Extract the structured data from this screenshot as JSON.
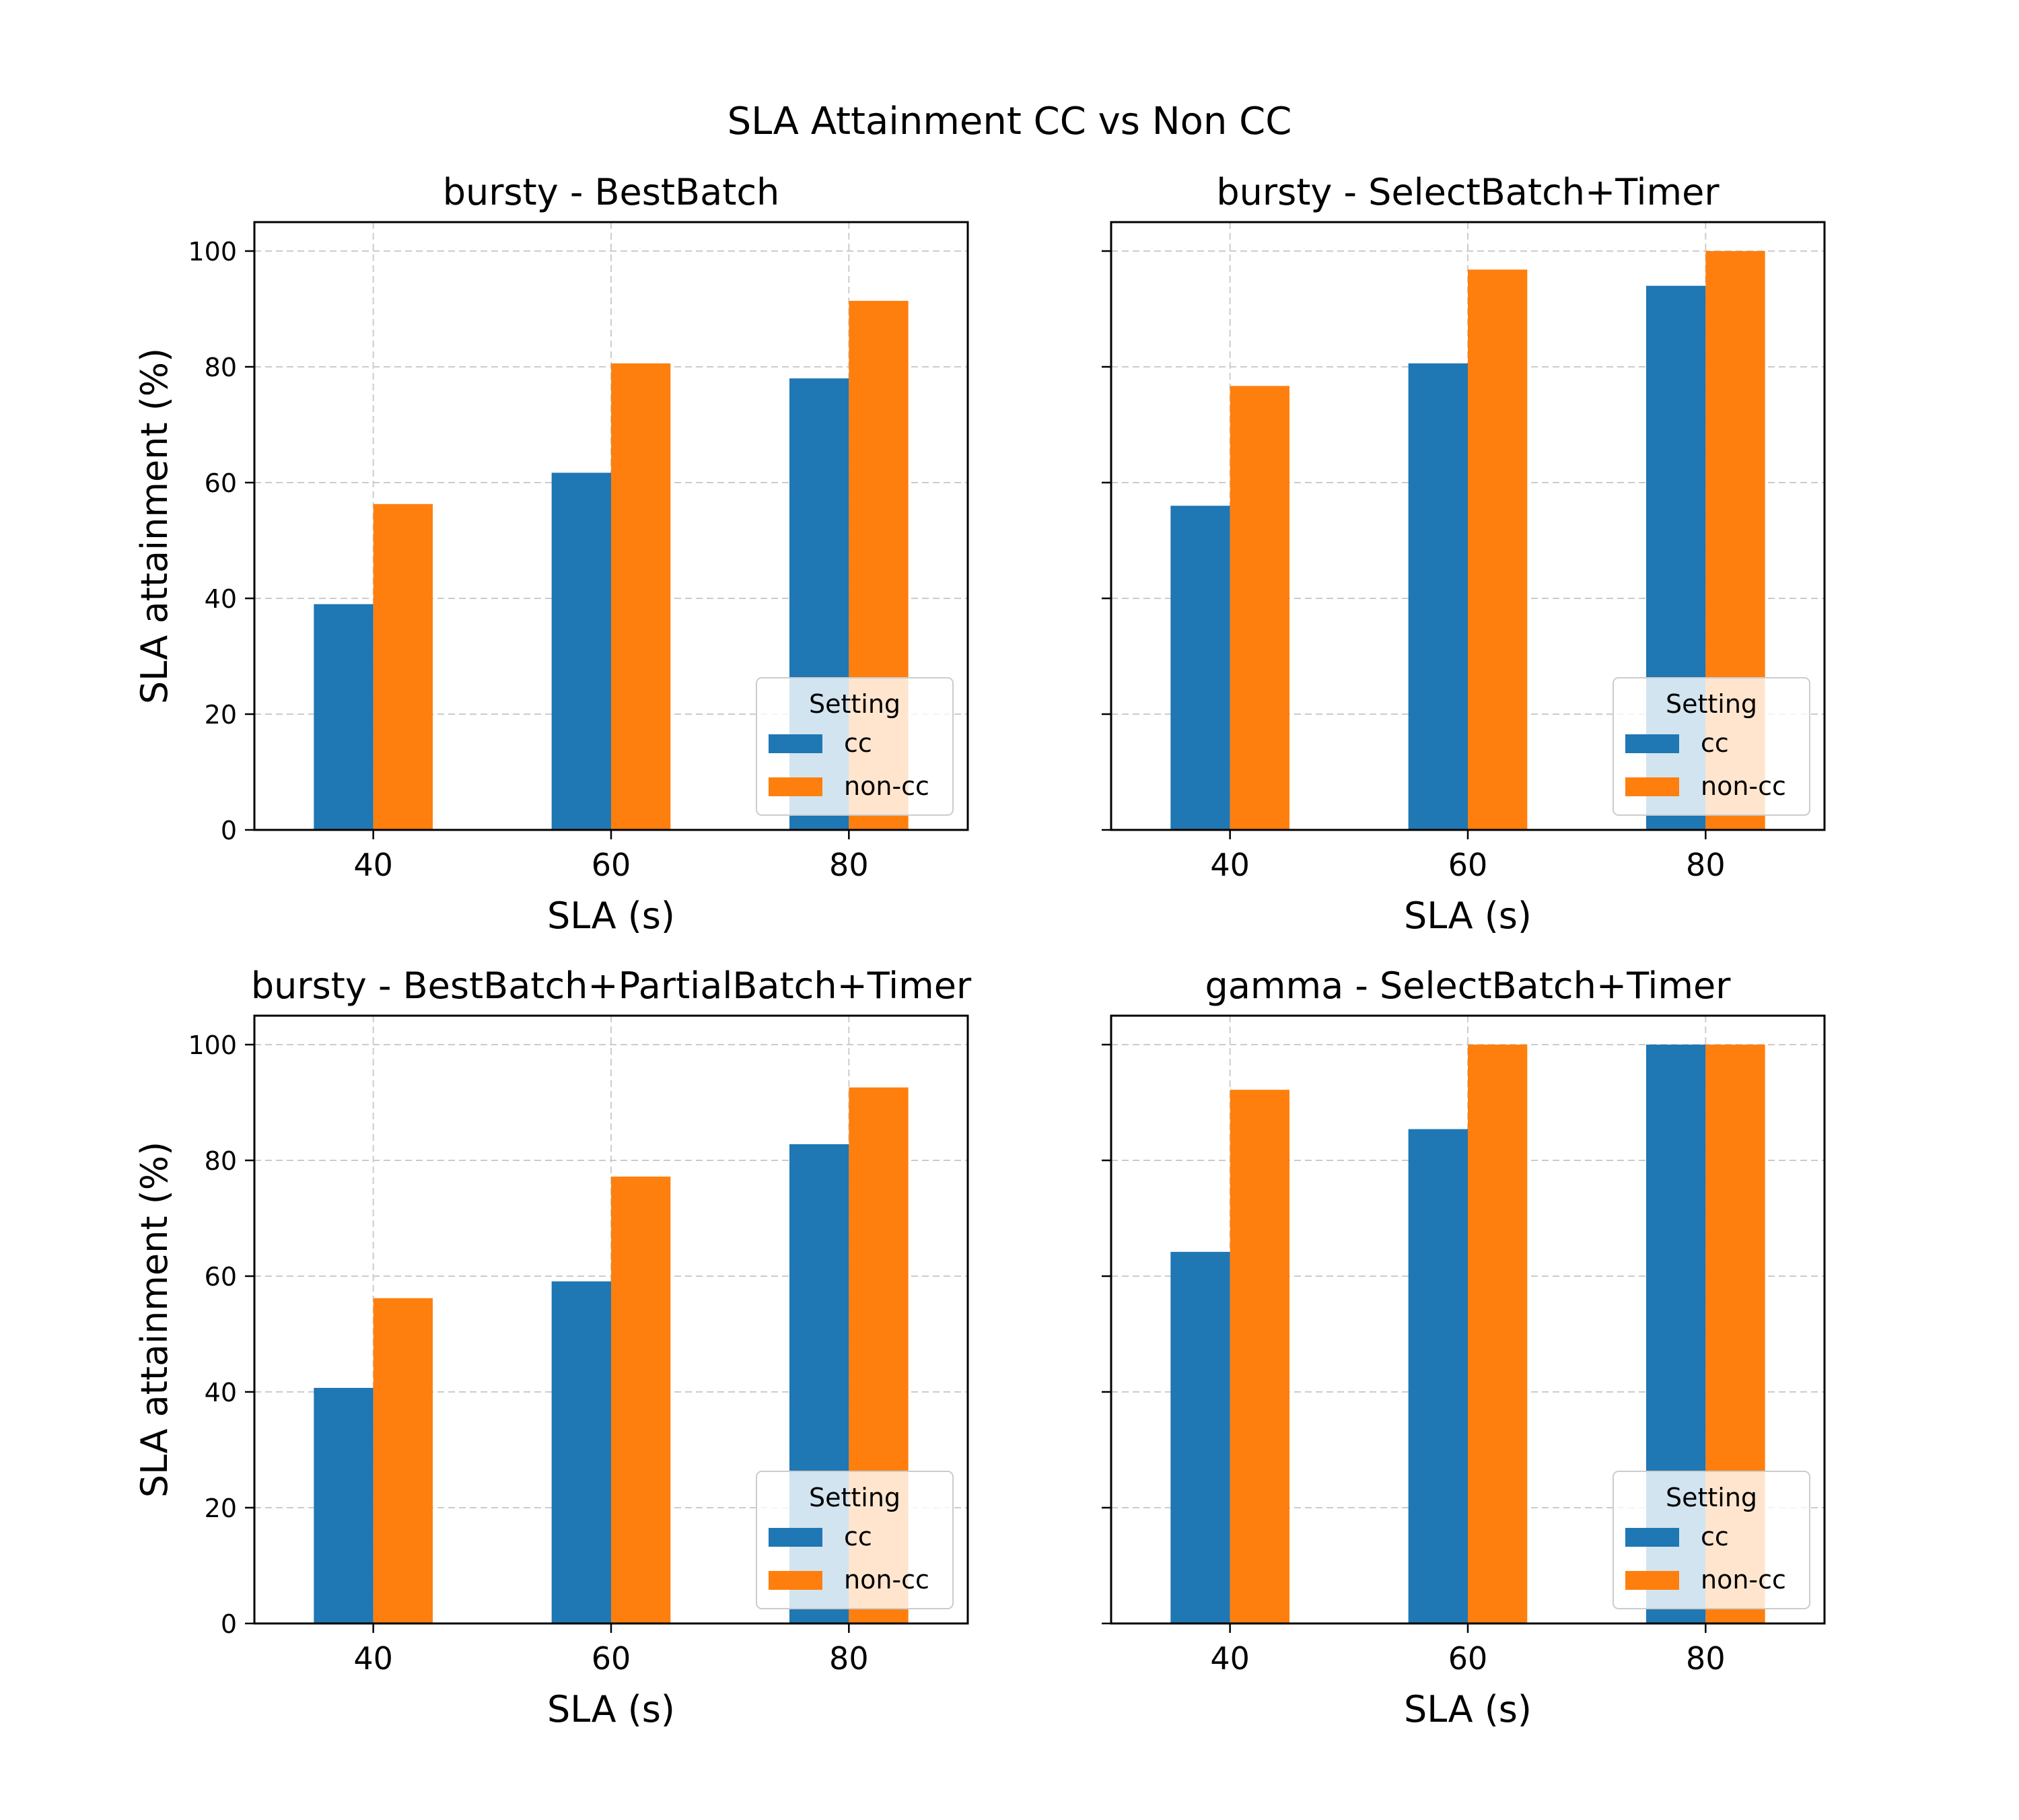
{
  "figure": {
    "title": "SLA Attainment CC vs Non CC"
  },
  "colors": {
    "cc": "#1f77b4",
    "non_cc": "#ff7f0e",
    "grid": "#cccccc"
  },
  "chart_data": [
    {
      "type": "bar",
      "title": "bursty - BestBatch",
      "xlabel": "SLA (s)",
      "ylabel": "SLA attainment (%)",
      "categories": [
        "40",
        "60",
        "80"
      ],
      "ylim": [
        0,
        105
      ],
      "yticks": [
        "0",
        "20",
        "40",
        "60",
        "80",
        "100"
      ],
      "grid": true,
      "legend": {
        "title": "Setting",
        "position": "lower right"
      },
      "series": [
        {
          "name": "cc",
          "values": [
            39,
            61.7,
            78
          ]
        },
        {
          "name": "non-cc",
          "values": [
            56.3,
            80.6,
            91.4
          ]
        }
      ]
    },
    {
      "type": "bar",
      "title": "bursty - SelectBatch+Timer",
      "xlabel": "SLA (s)",
      "ylabel": "",
      "categories": [
        "40",
        "60",
        "80"
      ],
      "ylim": [
        0,
        105
      ],
      "yticks": [],
      "grid": true,
      "legend": {
        "title": "Setting",
        "position": "lower right"
      },
      "series": [
        {
          "name": "cc",
          "values": [
            56,
            80.6,
            94
          ]
        },
        {
          "name": "non-cc",
          "values": [
            76.7,
            96.8,
            100
          ]
        }
      ]
    },
    {
      "type": "bar",
      "title": "bursty - BestBatch+PartialBatch+Timer",
      "xlabel": "SLA (s)",
      "ylabel": "SLA attainment (%)",
      "categories": [
        "40",
        "60",
        "80"
      ],
      "ylim": [
        0,
        105
      ],
      "yticks": [
        "0",
        "20",
        "40",
        "60",
        "80",
        "100"
      ],
      "grid": true,
      "legend": {
        "title": "Setting",
        "position": "lower right"
      },
      "series": [
        {
          "name": "cc",
          "values": [
            40.7,
            59.1,
            82.8
          ]
        },
        {
          "name": "non-cc",
          "values": [
            56.2,
            77.2,
            92.6
          ]
        }
      ]
    },
    {
      "type": "bar",
      "title": "gamma - SelectBatch+Timer",
      "xlabel": "SLA (s)",
      "ylabel": "",
      "categories": [
        "40",
        "60",
        "80"
      ],
      "ylim": [
        0,
        105
      ],
      "yticks": [],
      "grid": true,
      "legend": {
        "title": "Setting",
        "position": "lower right"
      },
      "series": [
        {
          "name": "cc",
          "values": [
            64.2,
            85.4,
            100
          ]
        },
        {
          "name": "non-cc",
          "values": [
            92.2,
            100,
            100
          ]
        }
      ]
    }
  ]
}
